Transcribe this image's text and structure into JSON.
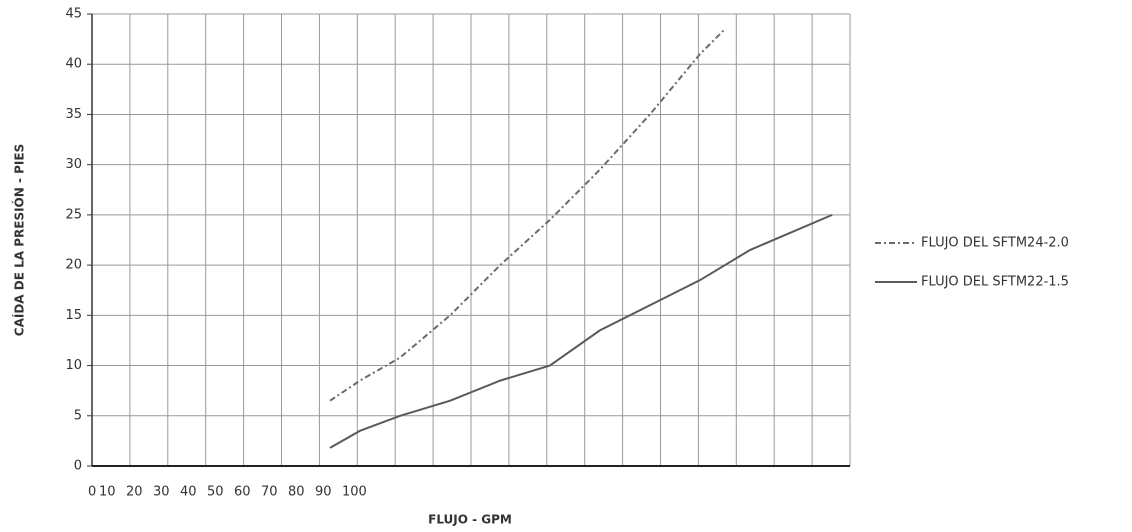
{
  "chart_data": {
    "type": "line",
    "x_label": "FLUJO - GPM",
    "y_label": "CAÍDA DE LA PRESIÓN - PIES",
    "xlim": [
      0,
      200
    ],
    "xticks": [
      0,
      10,
      20,
      30,
      40,
      50,
      60,
      70,
      80,
      90,
      100
    ],
    "ylim": [
      0,
      45
    ],
    "yticks": [
      0,
      5,
      10,
      15,
      20,
      25,
      30,
      35,
      40,
      45
    ],
    "grid": true,
    "legend": "right",
    "series": [
      {
        "name": "FLUJO DEL SFTM24-2.0",
        "color": "#6b6b6b",
        "dash": true,
        "x": [
          62.8,
          70.7,
          81.3,
          94.5,
          107.7,
          120.8,
          134.0,
          147.2,
          160.4,
          167.0
        ],
        "values": [
          6.5,
          8.5,
          10.8,
          15,
          20,
          24.5,
          29.5,
          35,
          41,
          43.5
        ]
      },
      {
        "name": "FLUJO DEL SFTM22-1.5",
        "color": "#5a5a5a",
        "dash": false,
        "x": [
          62.8,
          70.7,
          81.3,
          94.5,
          107.7,
          120.8,
          134.0,
          147.2,
          160.4,
          173.6,
          195.3
        ],
        "values": [
          1.8,
          3.5,
          5,
          6.5,
          8.5,
          10,
          13.5,
          16,
          18.5,
          21.5,
          25
        ]
      }
    ]
  }
}
